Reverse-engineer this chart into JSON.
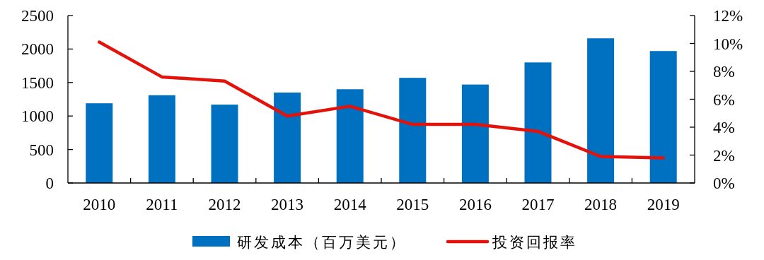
{
  "chart_data": {
    "type": "bar",
    "categories": [
      "2010",
      "2011",
      "2012",
      "2013",
      "2014",
      "2015",
      "2016",
      "2017",
      "2018",
      "2019"
    ],
    "series": [
      {
        "name": "研发成本（百万美元）",
        "color": "#0070c0",
        "values": [
          1190,
          1310,
          1170,
          1350,
          1400,
          1570,
          1470,
          1800,
          2160,
          1970
        ]
      },
      {
        "name": "投资回报率",
        "type": "line",
        "axis": "y2",
        "color": "#e3120b",
        "values": [
          10.1,
          7.6,
          7.3,
          4.8,
          5.5,
          4.2,
          4.2,
          3.7,
          1.9,
          1.8
        ]
      }
    ],
    "ylim": [
      0,
      2500
    ],
    "yticks": [
      0,
      500,
      1000,
      1500,
      2000,
      2500
    ],
    "y2lim": [
      0,
      12
    ],
    "y2ticks": [
      {
        "value": 0,
        "label": "0%"
      },
      {
        "value": 2,
        "label": "2%"
      },
      {
        "value": 4,
        "label": "4%"
      },
      {
        "value": 6,
        "label": "6%"
      },
      {
        "value": 8,
        "label": "8%"
      },
      {
        "value": 10,
        "label": "10%"
      },
      {
        "value": 12,
        "label": "12%"
      }
    ],
    "grid": false,
    "legend": "bottom"
  }
}
